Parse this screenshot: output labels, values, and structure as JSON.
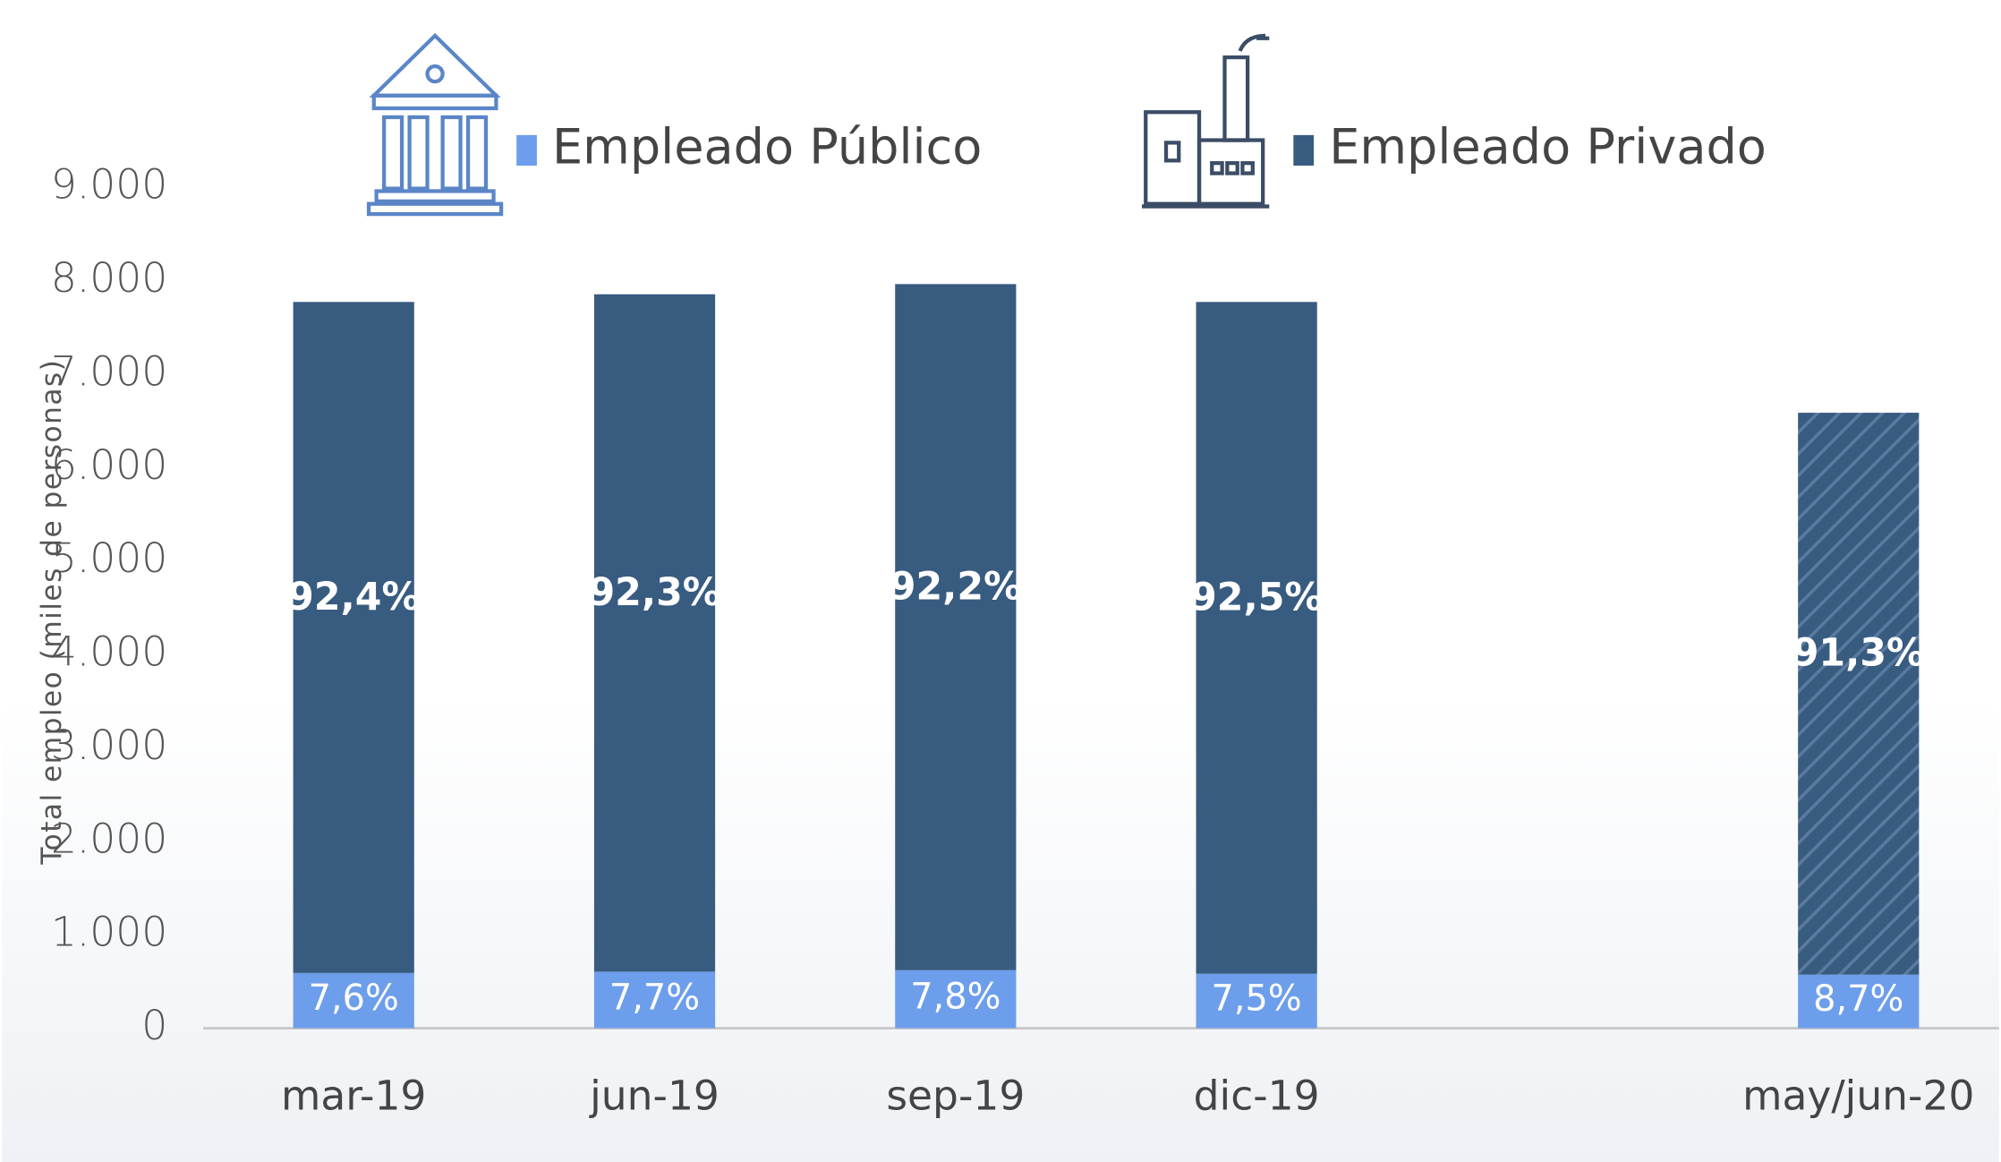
{
  "chart_data": {
    "type": "stacked_bar",
    "y_label": "Total empleo (miles de personas)",
    "categories": [
      "mar-19",
      "jun-19",
      "sep-19",
      "dic-19",
      null,
      "may/jun-20"
    ],
    "series": [
      {
        "name": "Empleado Público",
        "color": "#6d9eeb",
        "values": [
          591,
          605,
          621,
          583,
          null,
          573
        ],
        "labels": [
          "7,6%",
          "7,7%",
          "7,8%",
          "7,5%",
          null,
          "8,7%"
        ]
      },
      {
        "name": "Empleado Privado",
        "color": "#385b80",
        "values": [
          7182,
          7250,
          7343,
          7190,
          null,
          6014
        ],
        "labels": [
          "92,4%",
          "92,3%",
          "92,2%",
          "92,5%",
          null,
          "91,3%"
        ],
        "hatched": [
          false,
          false,
          false,
          false,
          null,
          true
        ]
      }
    ],
    "ylim": [
      0,
      9000
    ],
    "yticks": [
      0,
      {
        "value": 1000,
        "label": "1.000"
      },
      {
        "value": 2000,
        "label": "2.000"
      },
      {
        "value": 3000,
        "label": "3.000"
      },
      {
        "value": 4000,
        "label": "4.000"
      },
      {
        "value": 5000,
        "label": "5.000"
      },
      {
        "value": 6000,
        "label": "6.000"
      },
      {
        "value": 7000,
        "label": "7.000"
      },
      {
        "value": 8000,
        "label": "8.000"
      },
      {
        "value": 9000,
        "label": "9.000"
      }
    ],
    "grid": false
  }
}
